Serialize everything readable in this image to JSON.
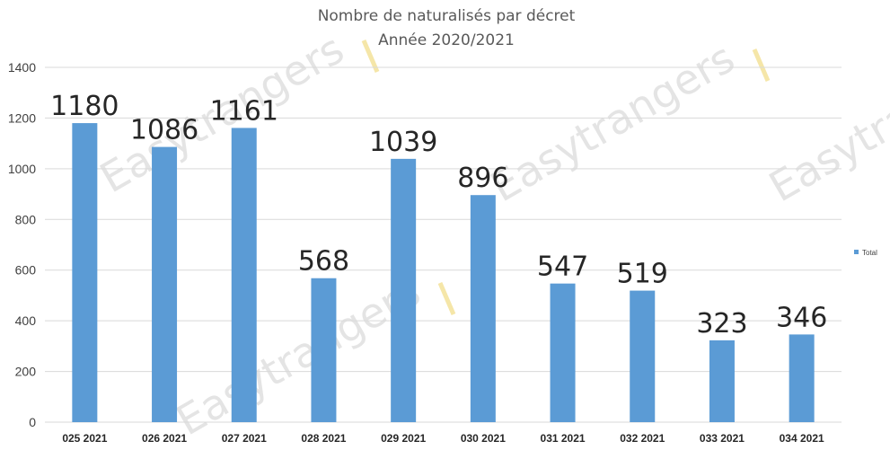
{
  "chart_data": {
    "type": "bar",
    "title": "Nombre de naturalisés par décret",
    "subtitle": "Année 2020/2021",
    "categories": [
      "025 2021",
      "026 2021",
      "027 2021",
      "028 2021",
      "029 2021",
      "030 2021",
      "031 2021",
      "032 2021",
      "033 2021",
      "034 2021"
    ],
    "series": [
      {
        "name": "Total",
        "values": [
          1180,
          1086,
          1161,
          568,
          1039,
          896,
          547,
          519,
          323,
          346
        ],
        "color": "#5b9bd5"
      }
    ],
    "ylim": [
      0,
      1400
    ],
    "yticks": [
      0,
      200,
      400,
      600,
      800,
      1000,
      1200,
      1400
    ],
    "grid": true,
    "legend_position": "right",
    "data_labels": true,
    "gridline_color": "#d9d9d9"
  },
  "watermark": {
    "text": "Easytrangers",
    "accent_color": "#f5e6a8"
  }
}
